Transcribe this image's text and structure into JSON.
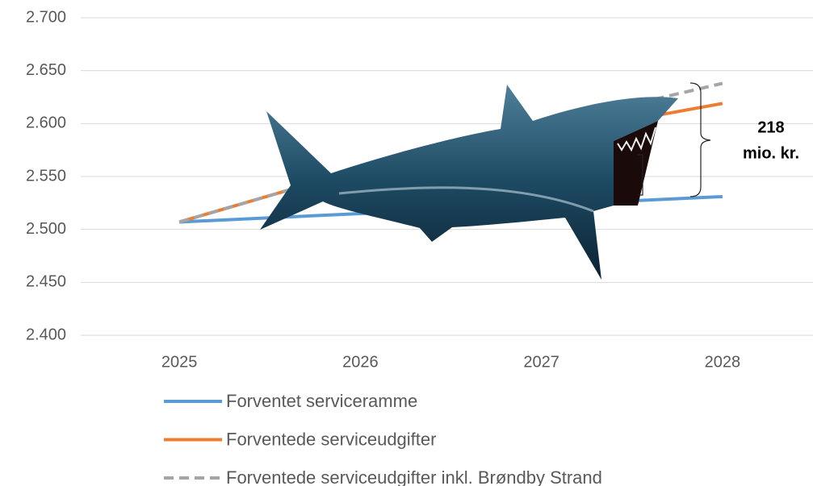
{
  "chart_data": {
    "type": "line",
    "categories": [
      "2025",
      "2026",
      "2027",
      "2028"
    ],
    "series": [
      {
        "name": "Forventet serviceramme",
        "color": "#5b9bd5",
        "style": "solid",
        "values": [
          2507,
          2515,
          2523,
          2531
        ]
      },
      {
        "name": "Forventede serviceudgifter",
        "color": "#ed7d31",
        "style": "solid",
        "values": [
          2507,
          2557,
          2588,
          2619
        ]
      },
      {
        "name": "Forventede serviceudgifter inkl. Brøndby Strand",
        "color": "#a5a5a5",
        "style": "dashed",
        "values": [
          2507,
          2557,
          2598,
          2638
        ]
      }
    ],
    "ylim": [
      2400,
      2700
    ],
    "yticks": [
      {
        "value": 2400,
        "label": "2.400"
      },
      {
        "value": 2450,
        "label": "2.450"
      },
      {
        "value": 2500,
        "label": "2.500"
      },
      {
        "value": 2550,
        "label": "2.550"
      },
      {
        "value": 2600,
        "label": "2.600"
      },
      {
        "value": 2650,
        "label": "2.650"
      },
      {
        "value": 2700,
        "label": "2.700"
      }
    ],
    "grid": true,
    "legend": "bottom",
    "annotation": [
      "218",
      "mio. kr."
    ]
  }
}
